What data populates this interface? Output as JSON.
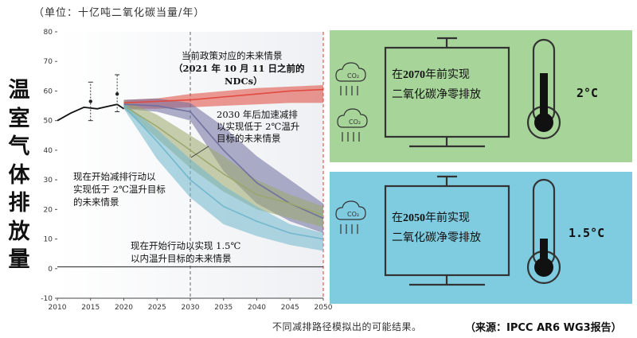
{
  "unit_label": "（单位：十亿吨二氧化碳当量/年）",
  "y_title_chars": [
    "温",
    "室",
    "气",
    "体",
    "排",
    "放",
    "量"
  ],
  "footnote": "不同减排路径模拟出的可能结果。",
  "source": "（来源：IPCC AR6 WG3报告）",
  "panels": [
    {
      "line1_pre": "在",
      "year": "2070",
      "line1_post": "年前实现",
      "line2": "二氧化碳净零排放",
      "temperature": "2°C",
      "color": "#a6d499"
    },
    {
      "line1_pre": "在",
      "year": "2050",
      "line1_post": "年前实现",
      "line2": "二氧化碳净零排放",
      "temperature": "1.5°C",
      "color": "#7fcbe0"
    }
  ],
  "icons": [
    "cloud-co2-icon",
    "cloud-co2-icon",
    "computer-monitor-icon",
    "thermometer-icon"
  ],
  "cloud_text": "CO₂",
  "chart_data": {
    "type": "area",
    "xlim": [
      2010,
      2050
    ],
    "ylim": [
      -10,
      80
    ],
    "x_ticks": [
      "2010",
      "2015",
      "2020",
      "2025",
      "2030",
      "2035",
      "2040",
      "2045",
      "2050"
    ],
    "y_ticks": [
      "80",
      "70",
      "60",
      "50",
      "40",
      "30",
      "20",
      "10",
      "0",
      "-10"
    ],
    "grid": false,
    "historical": {
      "x": [
        2010,
        2012,
        2014,
        2016,
        2018,
        2019,
        2020
      ],
      "y": [
        50,
        52.5,
        54.5,
        54,
        55,
        55.5,
        54
      ]
    },
    "error_bars": [
      {
        "x": 2015,
        "y": 56.5,
        "low": 50,
        "high": 63
      },
      {
        "x": 2019,
        "y": 59,
        "low": 53,
        "high": 65.5
      }
    ],
    "series": [
      {
        "key": "current_policy",
        "color": "#e0473c",
        "x": [
          2020,
          2025,
          2030,
          2035,
          2040,
          2045,
          2050
        ],
        "mid": [
          56,
          56.5,
          57,
          58,
          59,
          60,
          60.5
        ],
        "low": [
          54,
          54,
          54.5,
          55,
          55.5,
          56,
          56
        ],
        "high": [
          57,
          57.5,
          59,
          60,
          61,
          61.5,
          62
        ]
      },
      {
        "key": "delayed_2c",
        "color": "#6d6e9e",
        "x": [
          2020,
          2025,
          2030,
          2035,
          2040,
          2045,
          2050
        ],
        "mid": [
          55.5,
          55,
          53,
          40,
          29,
          22,
          17
        ],
        "low": [
          54,
          53,
          50,
          33,
          22,
          16,
          12
        ],
        "high": [
          57,
          57.5,
          56,
          48,
          38,
          30,
          22
        ]
      },
      {
        "key": "immediate_2c",
        "color": "#9aa86c",
        "x": [
          2020,
          2025,
          2030,
          2035,
          2040,
          2045,
          2050
        ],
        "mid": [
          55,
          48,
          40,
          32,
          25,
          22,
          18
        ],
        "low": [
          54,
          44,
          34,
          26,
          20,
          17,
          14
        ],
        "high": [
          57,
          52,
          45,
          38,
          30,
          25,
          21
        ]
      },
      {
        "key": "immediate_1_5c",
        "color": "#6fb6cc",
        "x": [
          2020,
          2025,
          2030,
          2035,
          2040,
          2045,
          2050
        ],
        "mid": [
          55,
          43,
          30,
          21,
          16,
          12,
          10
        ],
        "low": [
          54,
          37,
          24,
          15,
          11,
          8,
          6
        ],
        "high": [
          56,
          47,
          37,
          28,
          21,
          15,
          12
        ]
      }
    ],
    "annotations": [
      {
        "line1": "当前政策对应的未来情景",
        "line2": "（2021 年 10 月 11 日之前的",
        "line3": "NDCs）"
      },
      {
        "line1": "2030 年后加速减排",
        "line2": "以实现低于 2℃温升",
        "line3": "目标的未来情景"
      },
      {
        "line1": "现在开始减排行动以",
        "line2": "实现低于 2℃温升目标",
        "line3": "的未来情景"
      },
      {
        "line1": "现在开始行动以实现 1.5℃",
        "line2": "以内温升目标的未来情景"
      }
    ]
  }
}
